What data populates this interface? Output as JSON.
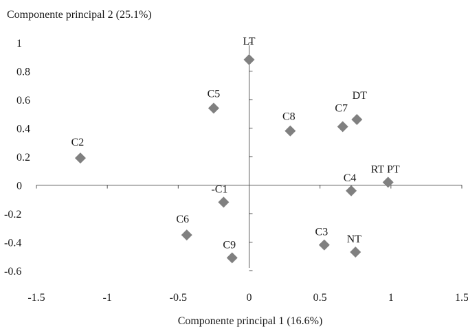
{
  "chart_data": {
    "type": "scatter",
    "title": "",
    "xlabel": "Componente principal 1 (16.6%)",
    "ylabel": "Componente principal 2 (25.1%)",
    "xlim": [
      -1.5,
      1.5
    ],
    "ylim": [
      -0.6,
      1
    ],
    "x_ticks": [
      "-1.5",
      "-1",
      "-0.5",
      "0",
      "0.5",
      "1",
      "1.5"
    ],
    "y_ticks": [
      "1",
      "0.8",
      "0.6",
      "0.4",
      "0.2",
      "0",
      "-0.2",
      "-0.4",
      "-0.6"
    ],
    "grid": false,
    "marker": "diamond",
    "marker_color": "#808080",
    "axis_color": "#555555",
    "points": [
      {
        "label": "LT",
        "x": 0.0,
        "y": 0.88
      },
      {
        "label": "C5",
        "x": -0.25,
        "y": 0.54
      },
      {
        "label": "C8",
        "x": 0.29,
        "y": 0.38
      },
      {
        "label": "C7",
        "x": 0.66,
        "y": 0.41
      },
      {
        "label": "DT",
        "x": 0.76,
        "y": 0.46
      },
      {
        "label": "C2",
        "x": -1.19,
        "y": 0.19
      },
      {
        "label": "RT PT",
        "x": 0.98,
        "y": 0.02
      },
      {
        "label": "C4",
        "x": 0.72,
        "y": -0.04
      },
      {
        "label": "-C1",
        "x": -0.18,
        "y": -0.12
      },
      {
        "label": "C6",
        "x": -0.44,
        "y": -0.35
      },
      {
        "label": "C3",
        "x": 0.53,
        "y": -0.42
      },
      {
        "label": "NT",
        "x": 0.75,
        "y": -0.47
      },
      {
        "label": "C9",
        "x": -0.12,
        "y": -0.51
      }
    ]
  }
}
